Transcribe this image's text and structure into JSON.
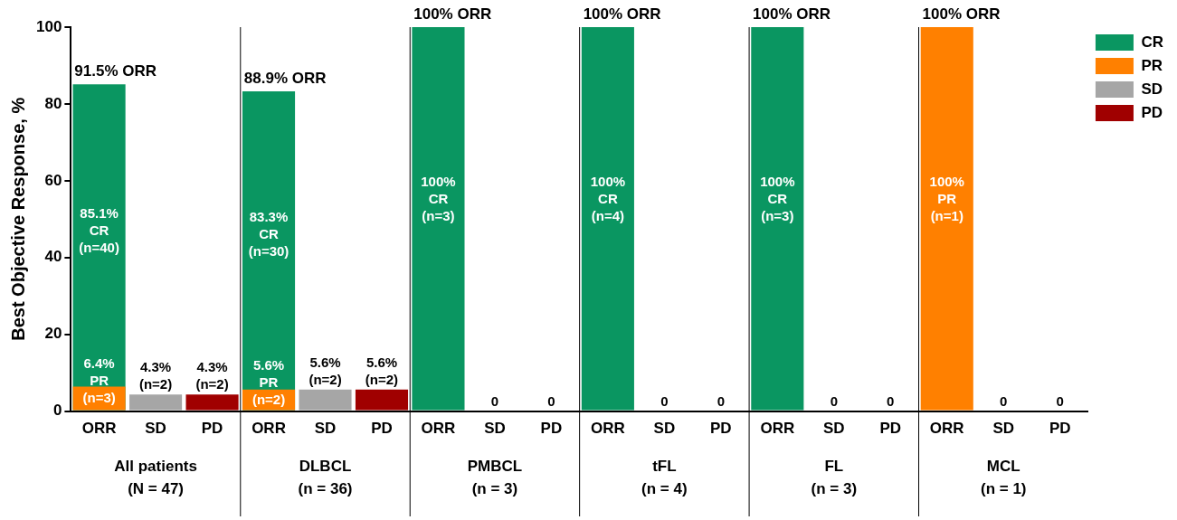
{
  "chart_data": {
    "type": "bar",
    "ylabel": "Best Objective Response, %",
    "categories": [
      "ORR",
      "SD",
      "PD",
      "ORR",
      "SD",
      "PD",
      "ORR",
      "SD",
      "PD",
      "ORR",
      "SD",
      "PD",
      "ORR",
      "SD",
      "PD",
      "ORR",
      "SD",
      "PD"
    ],
    "series": [
      {
        "name": "CR",
        "color": "#0a9661",
        "values": [
          85.1,
          null,
          null,
          83.3,
          null,
          null,
          100,
          null,
          null,
          100,
          null,
          null,
          100,
          null,
          null,
          null,
          null,
          null
        ],
        "value_labels": [
          "85.1%\nCR\n(n=40)",
          null,
          null,
          "83.3%\nCR\n(n=30)",
          null,
          null,
          "100%\nCR\n(n=3)",
          null,
          null,
          "100%\nCR\n(n=4)",
          null,
          null,
          "100%\nCR\n(n=3)",
          null,
          null,
          null,
          null,
          null
        ]
      },
      {
        "name": "PR",
        "color": "#ff8000",
        "values": [
          6.4,
          null,
          null,
          5.6,
          null,
          null,
          null,
          null,
          null,
          null,
          null,
          null,
          null,
          null,
          null,
          100,
          null,
          null
        ],
        "value_labels": [
          "6.4%\nPR\n(n=3)",
          null,
          null,
          "5.6%\nPR\n(n=2)",
          null,
          null,
          null,
          null,
          null,
          null,
          null,
          null,
          null,
          null,
          null,
          "100%\nPR\n(n=1)",
          null,
          null
        ]
      },
      {
        "name": "SD",
        "color": "#a6a6a6",
        "values": [
          null,
          4.3,
          null,
          null,
          5.6,
          null,
          null,
          0,
          null,
          null,
          0,
          null,
          null,
          0,
          null,
          null,
          0,
          null
        ],
        "value_labels": [
          null,
          "4.3%\n(n=2)",
          null,
          null,
          "5.6%\n(n=2)",
          null,
          null,
          "0",
          null,
          null,
          "0",
          null,
          null,
          "0",
          null,
          null,
          "0",
          null
        ]
      },
      {
        "name": "PD",
        "color": "#a00000",
        "values": [
          null,
          null,
          4.3,
          null,
          null,
          5.6,
          null,
          null,
          0,
          null,
          null,
          0,
          null,
          null,
          0,
          null,
          null,
          0
        ],
        "value_labels": [
          null,
          null,
          "4.3%\n(n=2)",
          null,
          null,
          "5.6%\n(n=2)",
          null,
          null,
          "0",
          null,
          null,
          "0",
          null,
          null,
          "0",
          null,
          null,
          "0"
        ]
      }
    ],
    "ylim": [
      0,
      100
    ],
    "yticks": [
      0,
      20,
      40,
      60,
      80,
      100
    ],
    "legend": "right",
    "annotations": [
      "All patients\n(N = 47)",
      "DLBCL\n(n = 36)",
      "PMBCL\n(n = 3)",
      "tFL\n(n = 4)",
      "FL\n(n = 3)",
      "MCL\n(n = 1)",
      "91.5% ORR",
      "88.9% ORR",
      "100% ORR",
      "100% ORR",
      "100% ORR",
      "100% ORR"
    ]
  }
}
